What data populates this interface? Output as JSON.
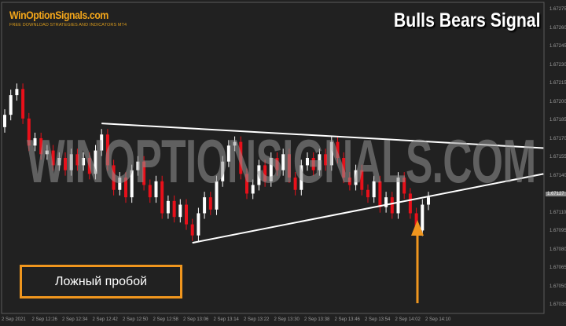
{
  "logo": {
    "name": "WinOptionSignals.com",
    "tagline": "FREE DOWNLOAD STRATEGIES AND INDICATORS MT4"
  },
  "title": "Bulls Bears Signal",
  "watermark": "WINOPTIONSIGNALS.COM",
  "annotation_label": "Ложный пробой",
  "colors": {
    "background": "#212121",
    "bull": "#ffffff",
    "bear": "#e8101a",
    "trendline": "#ffffff",
    "accent": "#f0961e",
    "logo": "#f2a51a"
  },
  "price_axis": {
    "ticks": [
      "1.67275",
      "1.67260",
      "1.67245",
      "1.67230",
      "1.67215",
      "1.67200",
      "1.67185",
      "1.67170",
      "1.67155",
      "1.67140",
      "1.67110",
      "1.67095",
      "1.67080",
      "1.67065",
      "1.67050",
      "1.67035"
    ],
    "current_price": "1.67127"
  },
  "time_axis": {
    "ticks": [
      "2 Sep 2021",
      "2 Sep 12:26",
      "2 Sep 12:34",
      "2 Sep 12:42",
      "2 Sep 12:50",
      "2 Sep 12:58",
      "2 Sep 13:06",
      "2 Sep 13:14",
      "2 Sep 13:22",
      "2 Sep 13:30",
      "2 Sep 13:38",
      "2 Sep 13:46",
      "2 Sep 13:54",
      "2 Sep 14:02",
      "2 Sep 14:10"
    ]
  },
  "candles": {
    "first_open": 1.6718,
    "closes": [
      1.6719,
      1.67206,
      1.67211,
      1.67187,
      1.67165,
      1.67171,
      1.67158,
      1.67161,
      1.67149,
      1.67155,
      1.67145,
      1.67158,
      1.67149,
      1.67155,
      1.67142,
      1.67161,
      1.67174,
      1.67149,
      1.67129,
      1.67139,
      1.67123,
      1.67145,
      1.67152,
      1.67133,
      1.67123,
      1.67136,
      1.6711,
      1.6712,
      1.67107,
      1.67117,
      1.67101,
      1.67092,
      1.6711,
      1.67123,
      1.67113,
      1.67136,
      1.67152,
      1.67165,
      1.67168,
      1.67142,
      1.67126,
      1.67133,
      1.67149,
      1.67136,
      1.67155,
      1.67145,
      1.67158,
      1.67139,
      1.67129,
      1.67149,
      1.67155,
      1.67145,
      1.67158,
      1.67149,
      1.67168,
      1.67155,
      1.67139,
      1.67133,
      1.67145,
      1.67129,
      1.67123,
      1.67136,
      1.67115,
      1.67123,
      1.6711,
      1.67139,
      1.67126,
      1.6711,
      1.67096,
      1.67117,
      1.67123
    ]
  },
  "trendlines": [
    {
      "name": "resistance",
      "from": {
        "bar": 16,
        "price": 1.67183
      },
      "to": {
        "bar": 89,
        "price": 1.67163
      }
    },
    {
      "name": "support",
      "from": {
        "bar": 31,
        "price": 1.67086
      },
      "to": {
        "bar": 89,
        "price": 1.67142
      }
    }
  ]
}
